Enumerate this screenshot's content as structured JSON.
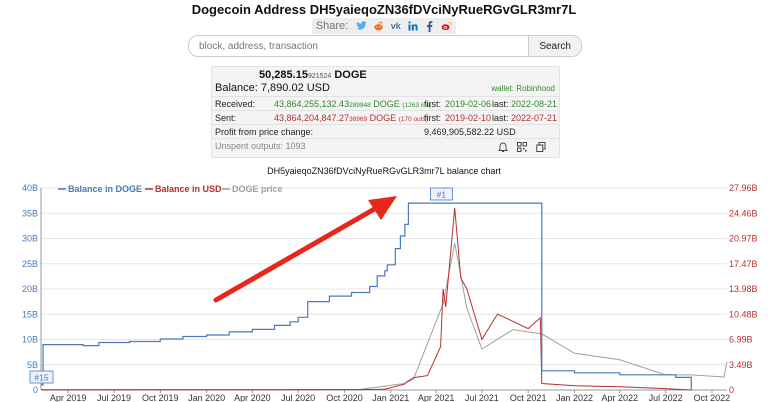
{
  "page": {
    "title": "Dogecoin Address DH5yaieqoZN36fDVciNyRueRGvGLR3mr7L",
    "share_label": "Share:"
  },
  "share_icons": [
    "twitter-icon",
    "reddit-icon",
    "vk-icon",
    "linkedin-icon",
    "facebook-icon",
    "weibo-icon"
  ],
  "search": {
    "placeholder": "block, address, transaction",
    "button": "Search"
  },
  "balance": {
    "doge_main": "50,285.15",
    "doge_small": "921524",
    "doge_unit": "DOGE",
    "usd": "Balance: 7,890.02 USD",
    "wallet": "wallet: Robinhood"
  },
  "received": {
    "label": "Received:",
    "amount_main": "43,864,255,132.43",
    "amount_small": "289948",
    "unit": "DOGE",
    "count": "(1263 ins)",
    "first_label": "first:",
    "first_date": "2019-02-06",
    "last_label": "last:",
    "last_date": "2022-08-21"
  },
  "sent": {
    "label": "Sent:",
    "amount_main": "43,864,204,847.27",
    "amount_small": "36969",
    "unit": "DOGE",
    "count": "(170 outs)",
    "first_label": "first:",
    "first_date": "2019-02-10",
    "last_label": "last:",
    "last_date": "2022-07-21"
  },
  "profit": {
    "label": "Profit from price change:",
    "value": "9,469,905,582.22 USD"
  },
  "unspent": {
    "label": "Unspent outputs: 1093"
  },
  "chart_data": {
    "type": "line",
    "title": "DH5yaieqoZN36fDVciNyRueRGvGLR3mr7L balance chart",
    "legend": [
      "Balance in DOGE",
      "Balance in USD",
      "DOGE price"
    ],
    "legend_placement": "top-left",
    "x_ticks": [
      "Apr 2019",
      "Jul 2019",
      "Oct 2019",
      "Jan 2020",
      "Apr 2020",
      "Jul 2020",
      "Oct 2020",
      "Jan 2021",
      "Apr 2021",
      "Jul 2021",
      "Oct 2021",
      "Jan 2022",
      "Apr 2022",
      "Jul 2022",
      "Oct 2022"
    ],
    "y_left_ticks": [
      "0",
      "5B",
      "10B",
      "15B",
      "20B",
      "25B",
      "30B",
      "35B",
      "40B"
    ],
    "y_right_ticks": [
      "0",
      "3.49B",
      "6.99B",
      "10.48B",
      "13.98B",
      "17.47B",
      "20.97B",
      "24.46B",
      "27.96B"
    ],
    "y_left_range": [
      0,
      40
    ],
    "y_right_range": [
      0,
      27.96
    ],
    "annotations": [
      "#1",
      "#15"
    ],
    "colors": {
      "doge": "#4a7ab8",
      "usd": "#b5312f",
      "price": "#a0a0a0"
    },
    "series": [
      {
        "name": "Balance in DOGE",
        "unit": "billion DOGE",
        "x": [
          "2019-02-06",
          "2019-02-10",
          "2019-05-01",
          "2019-06-01",
          "2019-08-01",
          "2019-10-01",
          "2019-11-15",
          "2020-01-01",
          "2020-02-15",
          "2020-04-01",
          "2020-05-15",
          "2020-06-15",
          "2020-07-01",
          "2020-07-20",
          "2020-09-01",
          "2020-10-15",
          "2020-11-20",
          "2020-12-05",
          "2020-12-20",
          "2020-12-25",
          "2021-01-10",
          "2021-01-20",
          "2021-01-29",
          "2021-02-05",
          "2021-10-25",
          "2021-10-28",
          "2022-01-01",
          "2022-04-01",
          "2022-07-21",
          "2022-08-21"
        ],
        "y": [
          1.0,
          9.0,
          8.8,
          9.4,
          9.6,
          10.1,
          10.6,
          10.9,
          11.5,
          12.0,
          12.8,
          13.5,
          14.4,
          17.5,
          18.6,
          19.3,
          20.5,
          22.6,
          23.6,
          24.8,
          28.0,
          30.5,
          32.8,
          37.0,
          37.0,
          3.8,
          3.4,
          3.0,
          2.5,
          5e-05
        ]
      },
      {
        "name": "Balance in USD",
        "unit": "billion USD",
        "x": [
          "2019-02-06",
          "2020-11-01",
          "2020-12-20",
          "2021-01-28",
          "2021-02-01",
          "2021-02-15",
          "2021-03-15",
          "2021-04-10",
          "2021-04-15",
          "2021-04-20",
          "2021-05-08",
          "2021-05-20",
          "2021-06-01",
          "2021-07-01",
          "2021-08-01",
          "2021-09-01",
          "2021-10-01",
          "2021-10-25",
          "2021-10-28",
          "2022-01-01",
          "2022-04-01",
          "2022-07-01",
          "2022-08-21"
        ],
        "y": [
          0.01,
          0.06,
          0.11,
          0.8,
          1.1,
          1.7,
          2.0,
          6.0,
          14.0,
          11.5,
          25.2,
          15.5,
          14.0,
          7.0,
          10.5,
          9.5,
          8.5,
          10.0,
          0.9,
          0.6,
          0.45,
          0.2,
          1e-05
        ]
      },
      {
        "name": "DOGE price",
        "x": [
          "2019-02-06",
          "2020-11-01",
          "2021-01-28",
          "2021-02-15",
          "2021-04-15",
          "2021-05-08",
          "2021-06-01",
          "2021-07-01",
          "2021-09-01",
          "2021-10-28",
          "2022-01-01",
          "2022-04-01",
          "2022-07-01",
          "2022-08-21",
          "2022-10-25",
          "2022-10-31"
        ],
        "y": [
          0.002,
          0.003,
          0.03,
          0.05,
          0.4,
          0.68,
          0.38,
          0.19,
          0.28,
          0.26,
          0.17,
          0.14,
          0.07,
          0.07,
          0.06,
          0.13
        ]
      }
    ]
  }
}
